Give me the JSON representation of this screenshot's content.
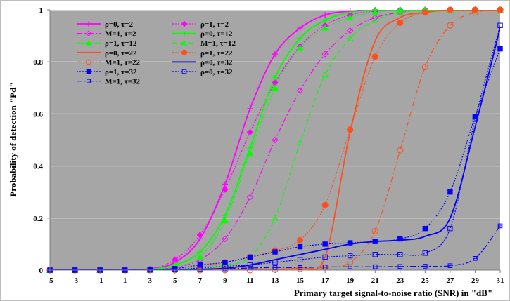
{
  "chart_data": {
    "type": "line",
    "title": "",
    "xlabel": "Primary target signal-to-noise  ratio (SNR) in \"dB\"",
    "ylabel": "Probability of detection \"Pd\"",
    "xlim": [
      -5,
      31
    ],
    "ylim": [
      0,
      1
    ],
    "x_ticks": [
      "-5",
      "-3",
      "-1",
      "1",
      "3",
      "5",
      "7",
      "9",
      "11",
      "13",
      "15",
      "17",
      "19",
      "21",
      "23",
      "25",
      "27",
      "29",
      "31"
    ],
    "y_ticks": [
      "0",
      "0.2",
      "0.4",
      "0.6",
      "0.8",
      "1"
    ],
    "plot_background": "#a6a6a6",
    "legend_position": "top-left-inside",
    "x": [
      -5,
      -3,
      -1,
      1,
      3,
      5,
      7,
      9,
      11,
      13,
      15,
      17,
      19,
      21,
      23,
      25,
      27,
      29,
      31
    ],
    "series": [
      {
        "name": "ρ=0, τ=2",
        "color": "#ff00ff",
        "dash": "solid",
        "marker": "plus",
        "values": [
          0,
          0,
          0,
          0,
          0.005,
          0.03,
          0.12,
          0.33,
          0.62,
          0.83,
          0.93,
          0.98,
          0.995,
          1,
          1,
          1,
          1,
          1,
          1
        ]
      },
      {
        "name": "ρ=1, τ=2",
        "color": "#ff00ff",
        "dash": "dotted",
        "marker": "diamond-filled",
        "values": [
          0,
          0,
          0,
          0,
          0.004,
          0.04,
          0.135,
          0.31,
          0.53,
          0.72,
          0.86,
          0.94,
          0.98,
          0.995,
          1,
          1,
          1,
          1,
          1
        ]
      },
      {
        "name": "M=1, τ=2",
        "color": "#ff00ff",
        "dash": "dashdot",
        "marker": "diamond-open",
        "values": [
          0,
          0,
          0,
          0,
          0.002,
          0.01,
          0.04,
          0.12,
          0.28,
          0.5,
          0.69,
          0.83,
          0.92,
          0.97,
          0.99,
          1,
          1,
          1,
          1
        ]
      },
      {
        "name": "ρ=0, τ=12",
        "color": "#00ff00",
        "dash": "solid",
        "marker": "plus",
        "values": [
          0,
          0,
          0,
          0,
          0.003,
          0.02,
          0.07,
          0.21,
          0.47,
          0.74,
          0.89,
          0.96,
          0.99,
          1,
          1,
          1,
          1,
          1,
          1
        ]
      },
      {
        "name": "ρ=1, τ=12",
        "color": "#00ff00",
        "dash": "dotted",
        "marker": "triangle-filled",
        "values": [
          0,
          0,
          0,
          0,
          0.002,
          0.015,
          0.05,
          0.19,
          0.45,
          0.7,
          0.855,
          0.93,
          0.97,
          0.99,
          1,
          1,
          1,
          1,
          1
        ]
      },
      {
        "name": "M=1, τ=12",
        "color": "#00ff00",
        "dash": "dashed",
        "marker": "triangle-open",
        "values": [
          0,
          0,
          0,
          0,
          0,
          0.002,
          0.01,
          0.02,
          0.05,
          0.2,
          0.49,
          0.75,
          0.89,
          0.96,
          0.99,
          1,
          1,
          1,
          1
        ]
      },
      {
        "name": "ρ=0, τ=22",
        "color": "#ff4f1f",
        "dash": "solid",
        "marker": "none",
        "values": [
          0,
          0,
          0,
          0,
          0,
          0,
          0,
          0,
          0.001,
          0.003,
          0.01,
          0.05,
          0.53,
          0.88,
          0.97,
          0.99,
          1,
          1,
          1
        ]
      },
      {
        "name": "ρ=1, τ=22",
        "color": "#ff4f1f",
        "dash": "dotted",
        "marker": "circle-filled",
        "values": [
          0,
          0,
          0,
          0,
          0,
          0.003,
          0.01,
          0.03,
          0.05,
          0.075,
          0.115,
          0.25,
          0.54,
          0.82,
          0.95,
          0.99,
          1,
          1,
          1
        ]
      },
      {
        "name": "M=1, τ=22",
        "color": "#ff4f1f",
        "dash": "dashdot",
        "marker": "circle-open",
        "values": [
          0,
          0,
          0,
          0,
          0,
          0,
          0,
          0,
          0,
          0.002,
          0.005,
          0.01,
          0.03,
          0.15,
          0.46,
          0.78,
          0.94,
          0.99,
          1
        ]
      },
      {
        "name": "ρ=0, τ=32",
        "color": "#0000ff",
        "dash": "solid",
        "marker": "none",
        "values": [
          0,
          0,
          0,
          0,
          0,
          0,
          0.003,
          0.007,
          0.02,
          0.04,
          0.06,
          0.08,
          0.1,
          0.11,
          0.115,
          0.13,
          0.2,
          0.55,
          0.93
        ]
      },
      {
        "name": "ρ=1, τ=32",
        "color": "#0000ff",
        "dash": "dotted",
        "marker": "square-filled",
        "values": [
          0,
          0,
          0,
          0,
          0.003,
          0.006,
          0.02,
          0.03,
          0.05,
          0.07,
          0.09,
          0.1,
          0.105,
          0.11,
          0.12,
          0.16,
          0.3,
          0.59,
          0.85
        ]
      },
      {
        "name": "ρ=0, τ=32",
        "color": "#0000ff",
        "dash": "dotted",
        "marker": "square-open",
        "values": [
          0,
          0,
          0,
          0,
          0.001,
          0.003,
          0.008,
          0.015,
          0.02,
          0.03,
          0.04,
          0.05,
          0.055,
          0.06,
          0.06,
          0.065,
          0.16,
          0.58,
          0.94
        ]
      },
      {
        "name": "M=1, τ=32",
        "color": "#0000ff",
        "dash": "dashdot",
        "marker": "square-half",
        "values": [
          0,
          0,
          0,
          0,
          0,
          0.001,
          0.003,
          0.005,
          0.008,
          0.01,
          0.01,
          0.012,
          0.013,
          0.013,
          0.014,
          0.015,
          0.017,
          0.045,
          0.17
        ]
      }
    ]
  }
}
